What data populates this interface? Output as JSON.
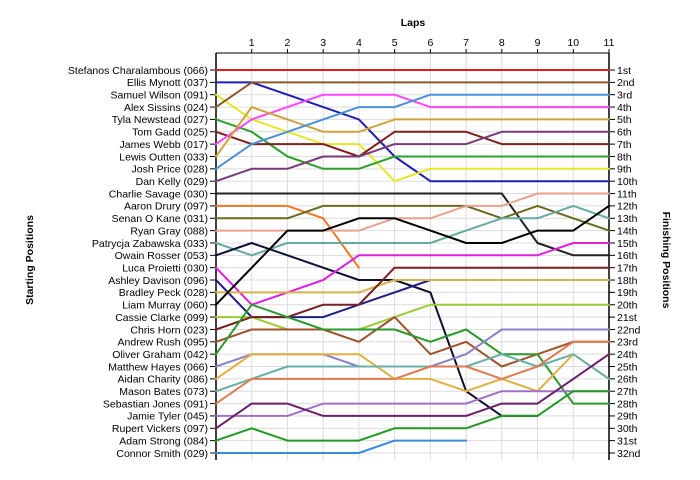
{
  "chart_data": {
    "type": "line",
    "title": "",
    "xlabel": "Laps",
    "ylabel_left": "Starting Positions",
    "ylabel_right": "Finishing Positions",
    "x": [
      0,
      1,
      2,
      3,
      4,
      5,
      6,
      7,
      8,
      9,
      10,
      11
    ],
    "x_tick_labels": [
      "1",
      "2",
      "3",
      "4",
      "5",
      "6",
      "7",
      "8",
      "9",
      "10",
      "11"
    ],
    "xlim": [
      0,
      11
    ],
    "ylim": [
      1,
      32
    ],
    "y_reversed": true,
    "grid": true,
    "left_labels": [
      "Stefanos Charalambous (066)",
      "Ellis Mynott (037)",
      "Samuel Wilson (091)",
      "Alex Sissins (024)",
      "Tyla Newstead (027)",
      "Tom Gadd (025)",
      "James Webb (017)",
      "Lewis Outten (033)",
      "Josh Price (028)",
      "Dan Kelly (029)",
      "Charlie Savage (030)",
      "Aaron Drury (097)",
      "Senan O Kane (031)",
      "Ryan Gray (088)",
      "Patrycja Zabawska (033)",
      "Owain Rosser (053)",
      "Luca Proietti (030)",
      "Ashley Davison (096)",
      "Bradley Peck (028)",
      "Liam Murray (060)",
      "Cassie Clarke (099)",
      "Chris Horn (023)",
      "Andrew Rush (095)",
      "Oliver Graham (042)",
      "Matthew Hayes (066)",
      "Aidan Charity (086)",
      "Mason Bates (073)",
      "Sebastian Jones (091)",
      "Jamie Tyler (045)",
      "Rupert Vickers (097)",
      "Adam Strong (084)",
      "Connor Smith (029)"
    ],
    "right_labels": [
      "1st",
      "2nd",
      "3rd",
      "4th",
      "5th",
      "6th",
      "7th",
      "8th",
      "9th",
      "10th",
      "11th",
      "12th",
      "13th",
      "14th",
      "15th",
      "16th",
      "17th",
      "18th",
      "19th",
      "20th",
      "21st",
      "22nd",
      "23rd",
      "24th",
      "25th",
      "26th",
      "27th",
      "28th",
      "29th",
      "30th",
      "31st",
      "32nd"
    ],
    "series": [
      {
        "color": "#e41a1c",
        "values": [
          1,
          1,
          1,
          1,
          1,
          1,
          1,
          1,
          1,
          1,
          1,
          1
        ]
      },
      {
        "color": "#1f1fb4",
        "values": [
          2,
          2,
          3,
          4,
          5,
          8,
          10,
          10,
          10,
          10,
          10,
          10
        ]
      },
      {
        "color": "#e6e62a",
        "values": [
          3,
          5,
          6,
          7,
          7,
          10,
          9,
          9,
          9,
          9,
          9,
          9
        ]
      },
      {
        "color": "#8b5a2b",
        "values": [
          4,
          2,
          2,
          2,
          2,
          2,
          2,
          2,
          2,
          2,
          2,
          2
        ]
      },
      {
        "color": "#2ca02c",
        "values": [
          5,
          6,
          8,
          9,
          9,
          8,
          8,
          8,
          8,
          8,
          8,
          8
        ]
      },
      {
        "color": "#7f1f1f",
        "values": [
          6,
          7,
          7,
          7,
          8,
          6,
          6,
          6,
          7,
          7,
          7,
          7
        ]
      },
      {
        "color": "#ff44ff",
        "values": [
          7,
          5,
          4,
          3,
          3,
          3,
          4,
          4,
          4,
          4,
          4,
          4
        ]
      },
      {
        "color": "#d2a23a",
        "values": [
          8,
          4,
          5,
          6,
          6,
          5,
          5,
          5,
          5,
          5,
          5,
          5
        ]
      },
      {
        "color": "#4a90d9",
        "values": [
          9,
          7,
          6,
          5,
          4,
          4,
          3,
          3,
          3,
          3,
          3,
          3
        ]
      },
      {
        "color": "#7a3a7a",
        "values": [
          10,
          9,
          9,
          8,
          8,
          7,
          7,
          7,
          6,
          6,
          6,
          6
        ]
      },
      {
        "color": "#222222",
        "values": [
          11,
          11,
          11,
          11,
          11,
          11,
          11,
          11,
          11,
          15,
          16,
          16
        ]
      },
      {
        "color": "#ee7722",
        "values": [
          12,
          12,
          12,
          13,
          17,
          null,
          null,
          null,
          null,
          null,
          null,
          null
        ]
      },
      {
        "color": "#6b6b1f",
        "values": [
          13,
          13,
          13,
          12,
          12,
          12,
          12,
          12,
          13,
          12,
          13,
          14
        ]
      },
      {
        "color": "#e8a090",
        "values": [
          14,
          14,
          14,
          14,
          14,
          13,
          13,
          12,
          12,
          11,
          11,
          11
        ]
      },
      {
        "color": "#66aaa0",
        "values": [
          15,
          16,
          15,
          15,
          15,
          15,
          15,
          14,
          13,
          13,
          12,
          13
        ]
      },
      {
        "color": "#101030",
        "values": [
          16,
          15,
          16,
          17,
          18,
          18,
          19,
          27,
          29,
          29,
          null,
          null
        ]
      },
      {
        "color": "#e020e0",
        "values": [
          17,
          20,
          19,
          18,
          16,
          16,
          16,
          16,
          16,
          16,
          15,
          15
        ]
      },
      {
        "color": "#1f1f8c",
        "values": [
          18,
          21,
          21,
          21,
          20,
          19,
          18,
          18,
          18,
          18,
          18,
          18
        ]
      },
      {
        "color": "#d2b44a",
        "values": [
          19,
          19,
          19,
          19,
          19,
          18,
          18,
          18,
          18,
          18,
          18,
          18
        ]
      },
      {
        "color": "#000000",
        "values": [
          20,
          17,
          14,
          14,
          13,
          13,
          14,
          15,
          15,
          14,
          14,
          12
        ]
      },
      {
        "color": "#9acd32",
        "values": [
          21,
          21,
          22,
          22,
          22,
          21,
          20,
          20,
          20,
          20,
          20,
          20
        ]
      },
      {
        "color": "#7a1f1f",
        "values": [
          22,
          21,
          21,
          20,
          20,
          17,
          17,
          17,
          17,
          17,
          17,
          17
        ]
      },
      {
        "color": "#a0522d",
        "values": [
          23,
          22,
          22,
          22,
          23,
          21,
          24,
          23,
          25,
          24,
          23,
          23
        ]
      },
      {
        "color": "#2a9a2a",
        "values": [
          24,
          20,
          21,
          22,
          22,
          22,
          23,
          22,
          24,
          24,
          28,
          28
        ]
      },
      {
        "color": "#9080c8",
        "values": [
          25,
          24,
          24,
          24,
          25,
          25,
          25,
          24,
          22,
          22,
          22,
          22
        ]
      },
      {
        "color": "#e0b040",
        "values": [
          26,
          24,
          24,
          24,
          24,
          26,
          26,
          27,
          26,
          27,
          24,
          26
        ]
      },
      {
        "color": "#66b0a8",
        "values": [
          27,
          26,
          25,
          25,
          25,
          25,
          25,
          25,
          24,
          25,
          24,
          26
        ]
      },
      {
        "color": "#e07a50",
        "values": [
          28,
          26,
          26,
          26,
          26,
          26,
          25,
          25,
          26,
          25,
          23,
          23
        ]
      },
      {
        "color": "#a070c8",
        "values": [
          29,
          29,
          29,
          28,
          28,
          28,
          28,
          28,
          27,
          27,
          27,
          27
        ]
      },
      {
        "color": "#6a1f6a",
        "values": [
          30,
          28,
          28,
          29,
          29,
          29,
          29,
          29,
          28,
          28,
          26,
          24
        ]
      },
      {
        "color": "#229922",
        "values": [
          31,
          30,
          31,
          31,
          31,
          30,
          30,
          30,
          29,
          29,
          27,
          27
        ]
      },
      {
        "color": "#3a8ad8",
        "values": [
          32,
          32,
          32,
          32,
          32,
          31,
          31,
          31,
          null,
          null,
          null,
          null
        ]
      }
    ]
  }
}
